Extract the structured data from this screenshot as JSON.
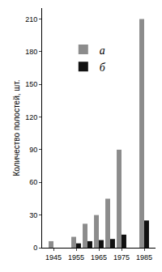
{
  "chart_data": {
    "type": "bar",
    "x": [
      1945,
      1955,
      1960,
      1965,
      1970,
      1975,
      1985
    ],
    "series": [
      {
        "name": "а",
        "color": "#8c8c8c",
        "values": [
          6,
          10,
          22,
          30,
          45,
          90,
          210
        ]
      },
      {
        "name": "б",
        "color": "#111111",
        "values": [
          0,
          4,
          6,
          7,
          8,
          12,
          25
        ]
      }
    ],
    "y_label": "Количество полостей, шт.",
    "xlim": [
      1940,
      1990
    ],
    "xticks": [
      1945,
      1955,
      1965,
      1975,
      1985
    ],
    "ylim": [
      0,
      220
    ],
    "yticks": [
      0,
      30,
      60,
      90,
      120,
      150,
      180,
      210
    ],
    "grid": false,
    "legend": "upper left"
  }
}
